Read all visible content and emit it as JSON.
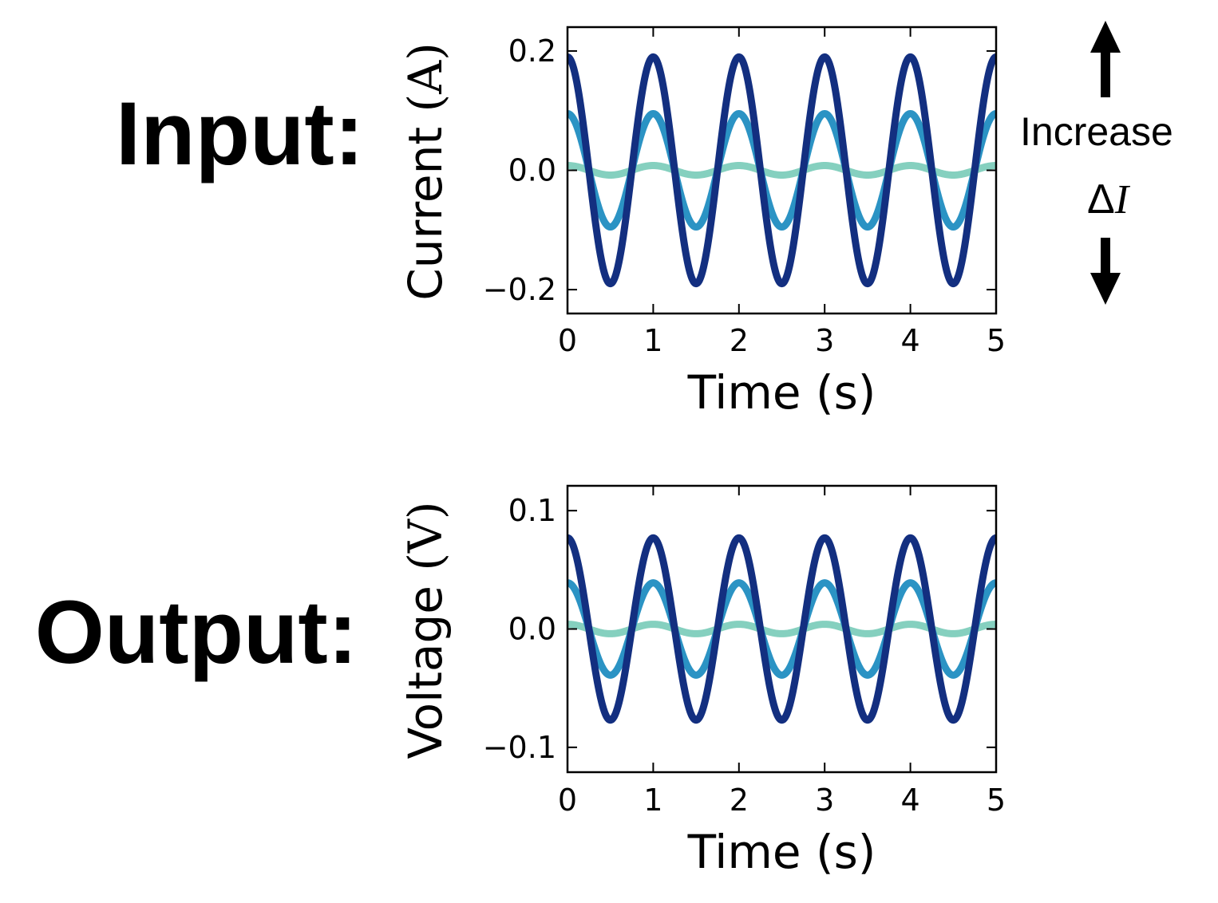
{
  "labels": {
    "input": "Input:",
    "output": "Output:"
  },
  "annotation": {
    "increase": "Increase",
    "delta_symbol": "Δ",
    "delta_var": "I"
  },
  "colors": {
    "large": "#132f80",
    "medium": "#2b93c4",
    "small": "#85d0bf"
  },
  "chart_data": [
    {
      "type": "line",
      "xlabel": "Time (s)",
      "ylabel": "Current",
      "ylabel_unit": "(A)",
      "xlim": [
        0,
        5
      ],
      "ylim": [
        -0.24,
        0.24
      ],
      "xticks": [
        "0",
        "1",
        "2",
        "3",
        "4",
        "5"
      ],
      "yticks": [
        {
          "value": 0.2,
          "label": "0.2"
        },
        {
          "value": 0.0,
          "label": "0.0"
        },
        {
          "value": -0.2,
          "label": "−0.2"
        }
      ],
      "grid": false,
      "function": "amplitude * cos(2*pi*t)",
      "x": [
        0,
        0.5,
        1,
        1.5,
        2,
        2.5,
        3,
        3.5,
        4,
        4.5,
        5
      ],
      "series": [
        {
          "amplitude": 0.19,
          "color": "large",
          "values": [
            0.19,
            -0.19,
            0.19,
            -0.19,
            0.19,
            -0.19,
            0.19,
            -0.19,
            0.19,
            -0.19,
            0.19
          ]
        },
        {
          "amplitude": 0.095,
          "color": "medium",
          "values": [
            0.095,
            -0.095,
            0.095,
            -0.095,
            0.095,
            -0.095,
            0.095,
            -0.095,
            0.095,
            -0.095,
            0.095
          ]
        },
        {
          "amplitude": 0.008,
          "color": "small",
          "values": [
            0.008,
            -0.008,
            0.008,
            -0.008,
            0.008,
            -0.008,
            0.008,
            -0.008,
            0.008,
            -0.008,
            0.008
          ]
        }
      ]
    },
    {
      "type": "line",
      "xlabel": "Time (s)",
      "ylabel": "Voltage",
      "ylabel_unit": "(V)",
      "xlim": [
        0,
        5
      ],
      "ylim": [
        -0.121,
        0.121
      ],
      "xticks": [
        "0",
        "1",
        "2",
        "3",
        "4",
        "5"
      ],
      "yticks": [
        {
          "value": 0.1,
          "label": "0.1"
        },
        {
          "value": 0.0,
          "label": "0.0"
        },
        {
          "value": -0.1,
          "label": "−0.1"
        }
      ],
      "grid": false,
      "function": "amplitude * cos(2*pi*t)",
      "x": [
        0,
        0.5,
        1,
        1.5,
        2,
        2.5,
        3,
        3.5,
        4,
        4.5,
        5
      ],
      "series": [
        {
          "amplitude": 0.077,
          "color": "large",
          "values": [
            0.077,
            -0.077,
            0.077,
            -0.077,
            0.077,
            -0.077,
            0.077,
            -0.077,
            0.077,
            -0.077,
            0.077
          ]
        },
        {
          "amplitude": 0.039,
          "color": "medium",
          "values": [
            0.039,
            -0.039,
            0.039,
            -0.039,
            0.039,
            -0.039,
            0.039,
            -0.039,
            0.039,
            -0.039,
            0.039
          ]
        },
        {
          "amplitude": 0.004,
          "color": "small",
          "values": [
            0.004,
            -0.004,
            0.004,
            -0.004,
            0.004,
            -0.004,
            0.004,
            -0.004,
            0.004,
            -0.004,
            0.004
          ]
        }
      ]
    }
  ]
}
